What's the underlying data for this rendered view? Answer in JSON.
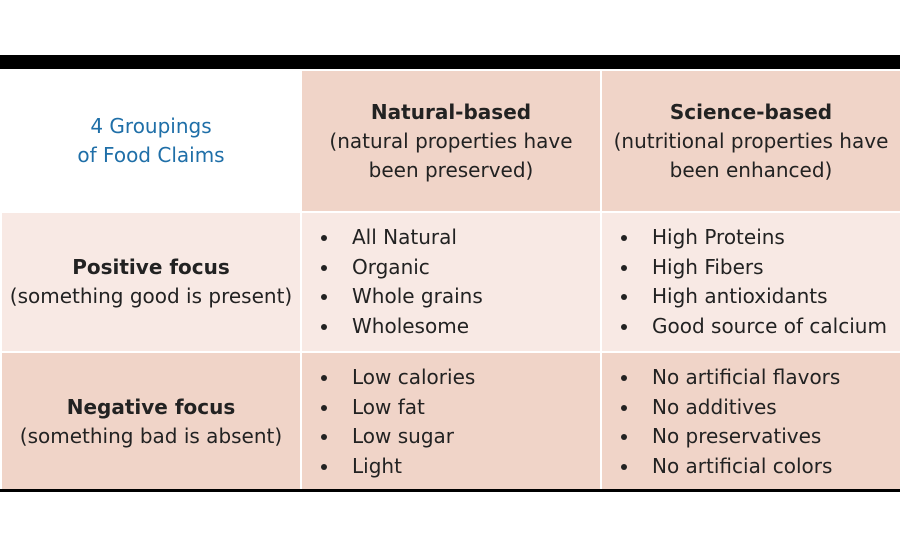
{
  "table": {
    "corner": [
      "4 Groupings",
      "of Food Claims"
    ],
    "columns": [
      {
        "title": "Natural-based",
        "subtitle": [
          "(natural properties have",
          "been preserved)"
        ]
      },
      {
        "title": "Science-based",
        "subtitle": [
          "(nutritional properties have",
          "been enhanced)"
        ]
      }
    ],
    "rows": [
      {
        "title": "Positive focus",
        "subtitle": "(something good is present)",
        "cells": [
          [
            "All Natural",
            "Organic",
            "Whole grains",
            "Wholesome"
          ],
          [
            "High Proteins",
            "High Fibers",
            "High antioxidants",
            "Good source of calcium"
          ]
        ]
      },
      {
        "title": "Negative focus",
        "subtitle": "(something bad is absent)",
        "cells": [
          [
            "Low calories",
            "Low fat",
            "Low sugar",
            "Light"
          ],
          [
            "No artificial flavors",
            "No additives",
            "No preservatives",
            "No artificial colors"
          ]
        ]
      }
    ]
  }
}
